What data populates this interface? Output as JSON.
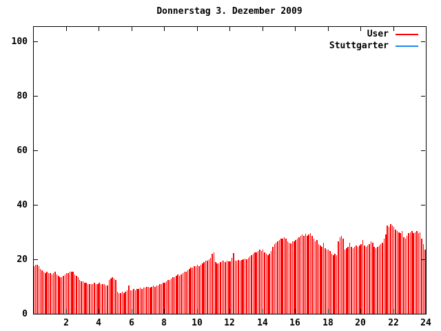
{
  "title": "Donnerstag 3. Dezember 2009",
  "legend": {
    "entries": [
      {
        "label": "User",
        "color": "#ff0000"
      },
      {
        "label": "Stuttgarter",
        "color": "#1c86ee"
      }
    ]
  },
  "axes": {
    "x_ticks": [
      2,
      4,
      6,
      8,
      10,
      12,
      14,
      16,
      18,
      20,
      22,
      24
    ],
    "y_ticks": [
      0,
      20,
      40,
      60,
      80,
      100
    ]
  },
  "colors": {
    "bars": "#ff0000",
    "axis": "#000000",
    "background": "#ffffff"
  },
  "chart_data": {
    "type": "bar",
    "title": "Donnerstag 3. Dezember 2009",
    "xlabel": "",
    "ylabel": "",
    "x_start_hour": 0,
    "x_step_hours": 0.1,
    "xlim": [
      0,
      24
    ],
    "ylim": [
      0,
      105
    ],
    "grid": false,
    "legend_position": "top-right",
    "series": [
      {
        "name": "User",
        "color": "#ff0000",
        "values": [
          17.5,
          18,
          18,
          17.5,
          16.5,
          16,
          15.5,
          15,
          15.5,
          15,
          15,
          14.5,
          15,
          15.5,
          14.5,
          14,
          13.5,
          13.5,
          14,
          14.5,
          15,
          15,
          15.5,
          15.5,
          15.5,
          14.5,
          14,
          13.5,
          12.5,
          12,
          12,
          11.5,
          11.5,
          11,
          11,
          11,
          11,
          11.5,
          11,
          11,
          11.5,
          11,
          11,
          11,
          10.5,
          10.5,
          12.5,
          13,
          13.5,
          13,
          12.5,
          8,
          7.5,
          7.5,
          8,
          7.5,
          8,
          8.5,
          10.5,
          8.5,
          8.5,
          9,
          8.5,
          9,
          9,
          9.5,
          9,
          9.5,
          9.5,
          10,
          10,
          9.5,
          10,
          10.5,
          10,
          10.5,
          10.5,
          11,
          11,
          11.5,
          11.5,
          12,
          12.5,
          12.5,
          13,
          13.5,
          13.5,
          14,
          14.5,
          14,
          14.5,
          15,
          15.5,
          15.5,
          16,
          16.5,
          17,
          17,
          17.5,
          17.5,
          18,
          17.5,
          18,
          18.5,
          19,
          19.5,
          19.5,
          20,
          20.5,
          22,
          22.5,
          19,
          18.5,
          18.5,
          19,
          19.5,
          19.5,
          19,
          19.5,
          19.2,
          19.2,
          20.5,
          22.3,
          19.5,
          19.5,
          19.7,
          19.5,
          19.7,
          20,
          20.3,
          20,
          20.5,
          21,
          21.5,
          22,
          22.5,
          22.5,
          23,
          23.5,
          23,
          23.5,
          22.5,
          22,
          21.5,
          22,
          23,
          24.5,
          25.5,
          26,
          26.5,
          27,
          27.5,
          27.5,
          28,
          27.5,
          26.5,
          26,
          25.8,
          26.5,
          26.5,
          27,
          27.5,
          28,
          28.5,
          29,
          28.5,
          29.3,
          28.5,
          29,
          29.5,
          28.5,
          27.5,
          26.5,
          27,
          25.5,
          25,
          24.5,
          26,
          24,
          23.5,
          23.5,
          23,
          22,
          21.5,
          22,
          21.5,
          26.5,
          28,
          28.5,
          27.5,
          23.5,
          24,
          24.5,
          26,
          24.5,
          24,
          24.5,
          25,
          24.5,
          25,
          25.5,
          27,
          25,
          24.5,
          25,
          25.5,
          26.5,
          26,
          24.5,
          24,
          24.5,
          25,
          25.5,
          26,
          27.5,
          29,
          32.5,
          32,
          32.8,
          32.5,
          32,
          31,
          30.5,
          30,
          29.5,
          30.5,
          28,
          27.5,
          28.5,
          29.5,
          30,
          30.5,
          29.5,
          30,
          30.5,
          29.5,
          30,
          27.5,
          25.5,
          23.5
        ]
      },
      {
        "name": "Stuttgarter",
        "color": "#1c86ee",
        "values": [],
        "note": "no visible data points in plot"
      }
    ]
  }
}
